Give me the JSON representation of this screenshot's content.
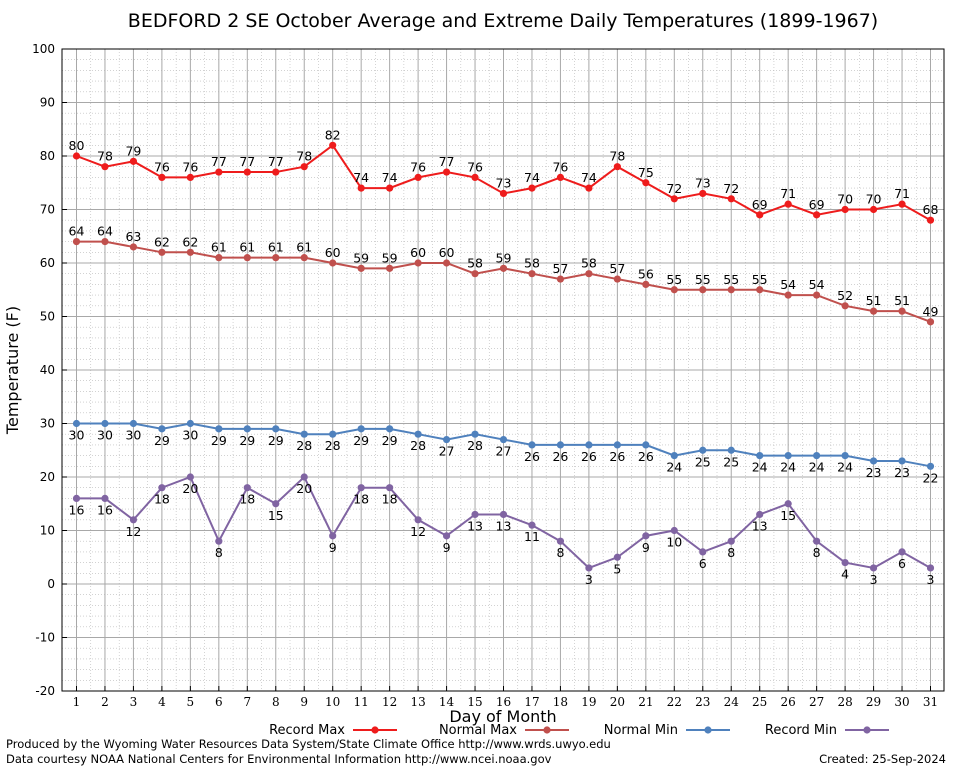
{
  "chart_data": {
    "type": "line",
    "title": "BEDFORD 2 SE October Average and Extreme Daily Temperatures (1899-1967)",
    "xlabel": "Day of Month",
    "ylabel": "Temperature (F)",
    "x": [
      1,
      2,
      3,
      4,
      5,
      6,
      7,
      8,
      9,
      10,
      11,
      12,
      13,
      14,
      15,
      16,
      17,
      18,
      19,
      20,
      21,
      22,
      23,
      24,
      25,
      26,
      27,
      28,
      29,
      30,
      31
    ],
    "ylim": [
      -20,
      100
    ],
    "yticks": [
      -20,
      -10,
      0,
      10,
      20,
      30,
      40,
      50,
      60,
      70,
      80,
      90,
      100
    ],
    "grid": true,
    "legend_position": "bottom",
    "series": [
      {
        "name": "Record Max",
        "color": "#ee1c1c",
        "label_position": "above",
        "values": [
          80,
          78,
          79,
          76,
          76,
          77,
          77,
          77,
          78,
          82,
          74,
          74,
          76,
          77,
          76,
          73,
          74,
          76,
          74,
          78,
          75,
          72,
          73,
          72,
          69,
          71,
          69,
          70,
          70,
          71,
          68
        ]
      },
      {
        "name": "Normal Max",
        "color": "#c0504d",
        "label_position": "above",
        "values": [
          64,
          64,
          63,
          62,
          62,
          61,
          61,
          61,
          61,
          60,
          59,
          59,
          60,
          60,
          58,
          59,
          58,
          57,
          58,
          57,
          56,
          55,
          55,
          55,
          55,
          54,
          54,
          52,
          51,
          51,
          49
        ]
      },
      {
        "name": "Normal Min",
        "color": "#4f81bd",
        "label_position": "below",
        "values": [
          30,
          30,
          30,
          29,
          30,
          29,
          29,
          29,
          28,
          28,
          29,
          29,
          28,
          27,
          28,
          27,
          26,
          26,
          26,
          26,
          26,
          24,
          25,
          25,
          24,
          24,
          24,
          24,
          23,
          23,
          22
        ]
      },
      {
        "name": "Record Min",
        "color": "#8064a2",
        "label_position": "below",
        "values": [
          16,
          16,
          12,
          18,
          20,
          8,
          18,
          15,
          20,
          9,
          18,
          18,
          12,
          9,
          13,
          13,
          11,
          8,
          3,
          5,
          9,
          10,
          6,
          8,
          13,
          15,
          8,
          4,
          3,
          6,
          3
        ]
      }
    ]
  },
  "footer": {
    "producer": "Produced by the Wyoming Water Resources Data System/State Climate Office http://www.wrds.uwyo.edu",
    "source": "Data courtesy NOAA National Centers for Environmental Information http://www.ncei.noaa.gov",
    "created": "Created:  25-Sep-2024"
  }
}
